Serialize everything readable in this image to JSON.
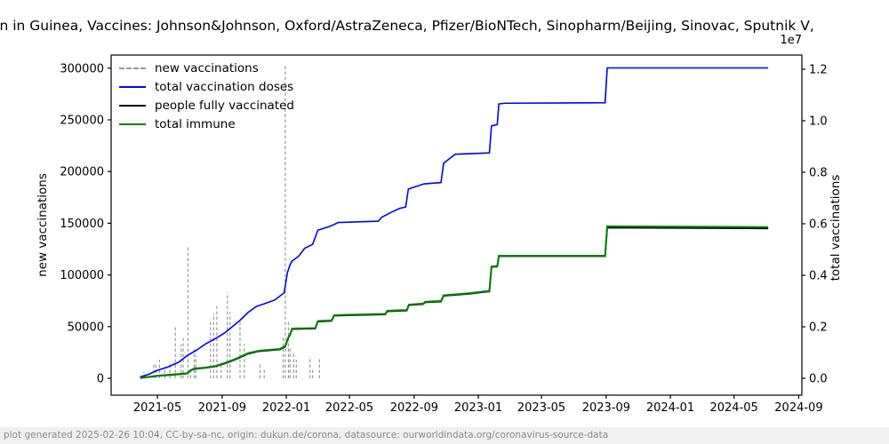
{
  "title": "on in Guinea, Vaccines: Johnson&Johnson, Oxford/AstraZeneca, Pfizer/BioNTech, Sinopharm/Beijing, Sinovac, Sputnik V,",
  "footer": "plot generated 2025-02-26 10:04, CC-by-sa-nc, origin: dukun.de/corona, datasource: ourworldindata.org/coronavirus-source-data",
  "axis_offset_label": "1e7",
  "colors": {
    "new_vaccinations": "#999999",
    "total_vaccination_doses": "#0000ff",
    "people_fully_vaccinated": "#000000",
    "total_immune": "#008000",
    "axis": "#000000",
    "footer_bg": "#f0f0f0",
    "footer_text": "#8a8a8a"
  },
  "legend": [
    {
      "label": "new vaccinations",
      "color": "#999999",
      "dashed": true
    },
    {
      "label": "total vaccination doses",
      "color": "#0000ff",
      "dashed": false
    },
    {
      "label": "people fully vaccinated",
      "color": "#000000",
      "dashed": false
    },
    {
      "label": "total immune",
      "color": "#008000",
      "dashed": false
    }
  ],
  "chart_data": {
    "type": "line",
    "title": "Vaccination in Guinea (matplotlib dual-axis time series)",
    "xlabel": "",
    "ylabel_left": "new vaccinations",
    "ylabel_right": "total vaccinations",
    "grid": false,
    "legend_position": "upper left",
    "xlim": [
      "2021-02-02",
      "2024-09-07"
    ],
    "ylim_left": [
      -16300,
      312700
    ],
    "ylim_right": [
      -655000,
      12550000
    ],
    "x_ticks": [
      {
        "label": "2021-05",
        "date": "2021-05-01"
      },
      {
        "label": "2021-09",
        "date": "2021-09-01"
      },
      {
        "label": "2022-01",
        "date": "2022-01-01"
      },
      {
        "label": "2022-05",
        "date": "2022-05-01"
      },
      {
        "label": "2022-09",
        "date": "2022-09-01"
      },
      {
        "label": "2023-01",
        "date": "2023-01-01"
      },
      {
        "label": "2023-05",
        "date": "2023-05-01"
      },
      {
        "label": "2023-09",
        "date": "2023-09-01"
      },
      {
        "label": "2024-01",
        "date": "2024-01-01"
      },
      {
        "label": "2024-05",
        "date": "2024-05-01"
      },
      {
        "label": "2024-09",
        "date": "2024-09-01"
      }
    ],
    "y_ticks_left": [
      {
        "label": "0",
        "value": 0
      },
      {
        "label": "50000",
        "value": 50000
      },
      {
        "label": "100000",
        "value": 100000
      },
      {
        "label": "150000",
        "value": 150000
      },
      {
        "label": "200000",
        "value": 200000
      },
      {
        "label": "250000",
        "value": 250000
      },
      {
        "label": "300000",
        "value": 300000
      }
    ],
    "y_ticks_right": [
      {
        "label": "0.0",
        "value": 0
      },
      {
        "label": "0.2",
        "value": 2000000
      },
      {
        "label": "0.4",
        "value": 4000000
      },
      {
        "label": "0.6",
        "value": 6000000
      },
      {
        "label": "0.8",
        "value": 8000000
      },
      {
        "label": "1.0",
        "value": 10000000
      },
      {
        "label": "1.2",
        "value": 12000000
      }
    ],
    "series": [
      {
        "name": "new vaccinations",
        "axis": "left",
        "style": "dashed-vertical-spikes",
        "color": "#999999",
        "points": [
          [
            "2021-04-05",
            6000
          ],
          [
            "2021-04-24",
            13000
          ],
          [
            "2021-04-28",
            15000
          ],
          [
            "2021-05-05",
            18000
          ],
          [
            "2021-05-15",
            11000
          ],
          [
            "2021-05-25",
            15000
          ],
          [
            "2021-06-04",
            50000
          ],
          [
            "2021-06-15",
            33000
          ],
          [
            "2021-06-19",
            40000
          ],
          [
            "2021-06-28",
            129000
          ],
          [
            "2021-07-03",
            9000
          ],
          [
            "2021-07-10",
            28000
          ],
          [
            "2021-07-13",
            22000
          ],
          [
            "2021-08-10",
            57000
          ],
          [
            "2021-08-16",
            63000
          ],
          [
            "2021-08-22",
            70000
          ],
          [
            "2021-08-30",
            12000
          ],
          [
            "2021-09-11",
            83000
          ],
          [
            "2021-09-16",
            64000
          ],
          [
            "2021-10-05",
            57000
          ],
          [
            "2021-10-13",
            33000
          ],
          [
            "2021-11-12",
            14000
          ],
          [
            "2021-11-20",
            9000
          ],
          [
            "2021-12-26",
            40000
          ],
          [
            "2021-12-30",
            303000
          ],
          [
            "2022-01-05",
            55000
          ],
          [
            "2022-01-08",
            31000
          ],
          [
            "2022-01-15",
            25000
          ],
          [
            "2022-01-20",
            18000
          ],
          [
            "2022-02-15",
            21000
          ],
          [
            "2022-02-20",
            8000
          ],
          [
            "2022-03-05",
            19000
          ]
        ]
      },
      {
        "name": "total vaccination doses",
        "axis": "right",
        "style": "line",
        "color": "#0000ff",
        "width": 1.6,
        "points": [
          [
            "2021-03-29",
            50000
          ],
          [
            "2021-04-15",
            160000
          ],
          [
            "2021-05-01",
            310000
          ],
          [
            "2021-05-20",
            430000
          ],
          [
            "2021-06-10",
            620000
          ],
          [
            "2021-06-28",
            900000
          ],
          [
            "2021-07-15",
            1100000
          ],
          [
            "2021-08-01",
            1340000
          ],
          [
            "2021-08-20",
            1550000
          ],
          [
            "2021-09-05",
            1750000
          ],
          [
            "2021-09-20",
            2000000
          ],
          [
            "2021-10-05",
            2250000
          ],
          [
            "2021-10-20",
            2550000
          ],
          [
            "2021-11-05",
            2790000
          ],
          [
            "2021-11-20",
            2890000
          ],
          [
            "2021-12-10",
            3040000
          ],
          [
            "2021-12-28",
            3320000
          ],
          [
            "2022-01-03",
            4100000
          ],
          [
            "2022-01-08",
            4400000
          ],
          [
            "2022-01-12",
            4550000
          ],
          [
            "2022-01-25",
            4750000
          ],
          [
            "2022-02-05",
            5050000
          ],
          [
            "2022-02-20",
            5200000
          ],
          [
            "2022-03-02",
            5750000
          ],
          [
            "2022-03-25",
            5900000
          ],
          [
            "2022-04-10",
            6050000
          ],
          [
            "2022-06-25",
            6100000
          ],
          [
            "2022-07-01",
            6250000
          ],
          [
            "2022-07-20",
            6450000
          ],
          [
            "2022-08-05",
            6600000
          ],
          [
            "2022-08-16",
            6650000
          ],
          [
            "2022-08-21",
            7350000
          ],
          [
            "2022-09-20",
            7550000
          ],
          [
            "2022-10-22",
            7600000
          ],
          [
            "2022-10-27",
            8350000
          ],
          [
            "2022-11-18",
            8700000
          ],
          [
            "2023-01-22",
            8750000
          ],
          [
            "2023-01-26",
            9800000
          ],
          [
            "2023-02-06",
            9850000
          ],
          [
            "2023-02-09",
            10650000
          ],
          [
            "2023-02-20",
            10680000
          ],
          [
            "2023-08-30",
            10700000
          ],
          [
            "2023-09-03",
            12050000
          ],
          [
            "2024-07-05",
            12050000
          ]
        ]
      },
      {
        "name": "people fully vaccinated",
        "axis": "right",
        "style": "line",
        "color": "#000000",
        "width": 1.8,
        "points": [
          [
            "2021-03-29",
            10000
          ],
          [
            "2021-05-01",
            90000
          ],
          [
            "2021-06-01",
            140000
          ],
          [
            "2021-06-27",
            185000
          ],
          [
            "2021-07-02",
            290000
          ],
          [
            "2021-07-10",
            365000
          ],
          [
            "2021-08-01",
            405000
          ],
          [
            "2021-08-20",
            465000
          ],
          [
            "2021-09-10",
            600000
          ],
          [
            "2021-10-01",
            770000
          ],
          [
            "2021-10-20",
            950000
          ],
          [
            "2021-11-10",
            1050000
          ],
          [
            "2021-12-20",
            1120000
          ],
          [
            "2021-12-30",
            1230000
          ],
          [
            "2022-01-04",
            1530000
          ],
          [
            "2022-01-08",
            1680000
          ],
          [
            "2022-01-12",
            1910000
          ],
          [
            "2022-02-25",
            1930000
          ],
          [
            "2022-03-02",
            2200000
          ],
          [
            "2022-03-28",
            2230000
          ],
          [
            "2022-04-02",
            2430000
          ],
          [
            "2022-07-08",
            2480000
          ],
          [
            "2022-07-12",
            2600000
          ],
          [
            "2022-08-18",
            2630000
          ],
          [
            "2022-08-22",
            2840000
          ],
          [
            "2022-09-18",
            2880000
          ],
          [
            "2022-09-22",
            2950000
          ],
          [
            "2022-10-22",
            2980000
          ],
          [
            "2022-10-27",
            3200000
          ],
          [
            "2022-12-15",
            3280000
          ],
          [
            "2023-01-15",
            3360000
          ],
          [
            "2023-01-22",
            3370000
          ],
          [
            "2023-01-26",
            4320000
          ],
          [
            "2023-02-06",
            4340000
          ],
          [
            "2023-02-09",
            4740000
          ],
          [
            "2023-08-30",
            4740000
          ],
          [
            "2023-09-03",
            5850000
          ],
          [
            "2024-07-05",
            5820000
          ]
        ]
      },
      {
        "name": "total immune",
        "axis": "right",
        "style": "line",
        "color": "#008000",
        "width": 2.0,
        "points": [
          [
            "2021-03-29",
            15000
          ],
          [
            "2021-05-01",
            100000
          ],
          [
            "2021-06-01",
            150000
          ],
          [
            "2021-06-27",
            195000
          ],
          [
            "2021-07-02",
            300000
          ],
          [
            "2021-07-10",
            380000
          ],
          [
            "2021-08-01",
            420000
          ],
          [
            "2021-08-20",
            480000
          ],
          [
            "2021-09-10",
            620000
          ],
          [
            "2021-10-01",
            790000
          ],
          [
            "2021-10-20",
            970000
          ],
          [
            "2021-11-10",
            1070000
          ],
          [
            "2021-12-20",
            1140000
          ],
          [
            "2021-12-30",
            1250000
          ],
          [
            "2022-01-04",
            1550000
          ],
          [
            "2022-01-08",
            1700000
          ],
          [
            "2022-01-12",
            1930000
          ],
          [
            "2022-02-25",
            1950000
          ],
          [
            "2022-03-02",
            2220000
          ],
          [
            "2022-03-28",
            2250000
          ],
          [
            "2022-04-02",
            2450000
          ],
          [
            "2022-07-08",
            2500000
          ],
          [
            "2022-07-12",
            2620000
          ],
          [
            "2022-08-18",
            2650000
          ],
          [
            "2022-08-22",
            2860000
          ],
          [
            "2022-09-18",
            2900000
          ],
          [
            "2022-09-22",
            2970000
          ],
          [
            "2022-10-22",
            3000000
          ],
          [
            "2022-10-27",
            3220000
          ],
          [
            "2022-12-15",
            3300000
          ],
          [
            "2023-01-15",
            3380000
          ],
          [
            "2023-01-22",
            3390000
          ],
          [
            "2023-01-26",
            4340000
          ],
          [
            "2023-02-06",
            4360000
          ],
          [
            "2023-02-09",
            4760000
          ],
          [
            "2023-08-30",
            4760000
          ],
          [
            "2023-09-03",
            5900000
          ],
          [
            "2024-07-05",
            5870000
          ]
        ]
      }
    ]
  }
}
